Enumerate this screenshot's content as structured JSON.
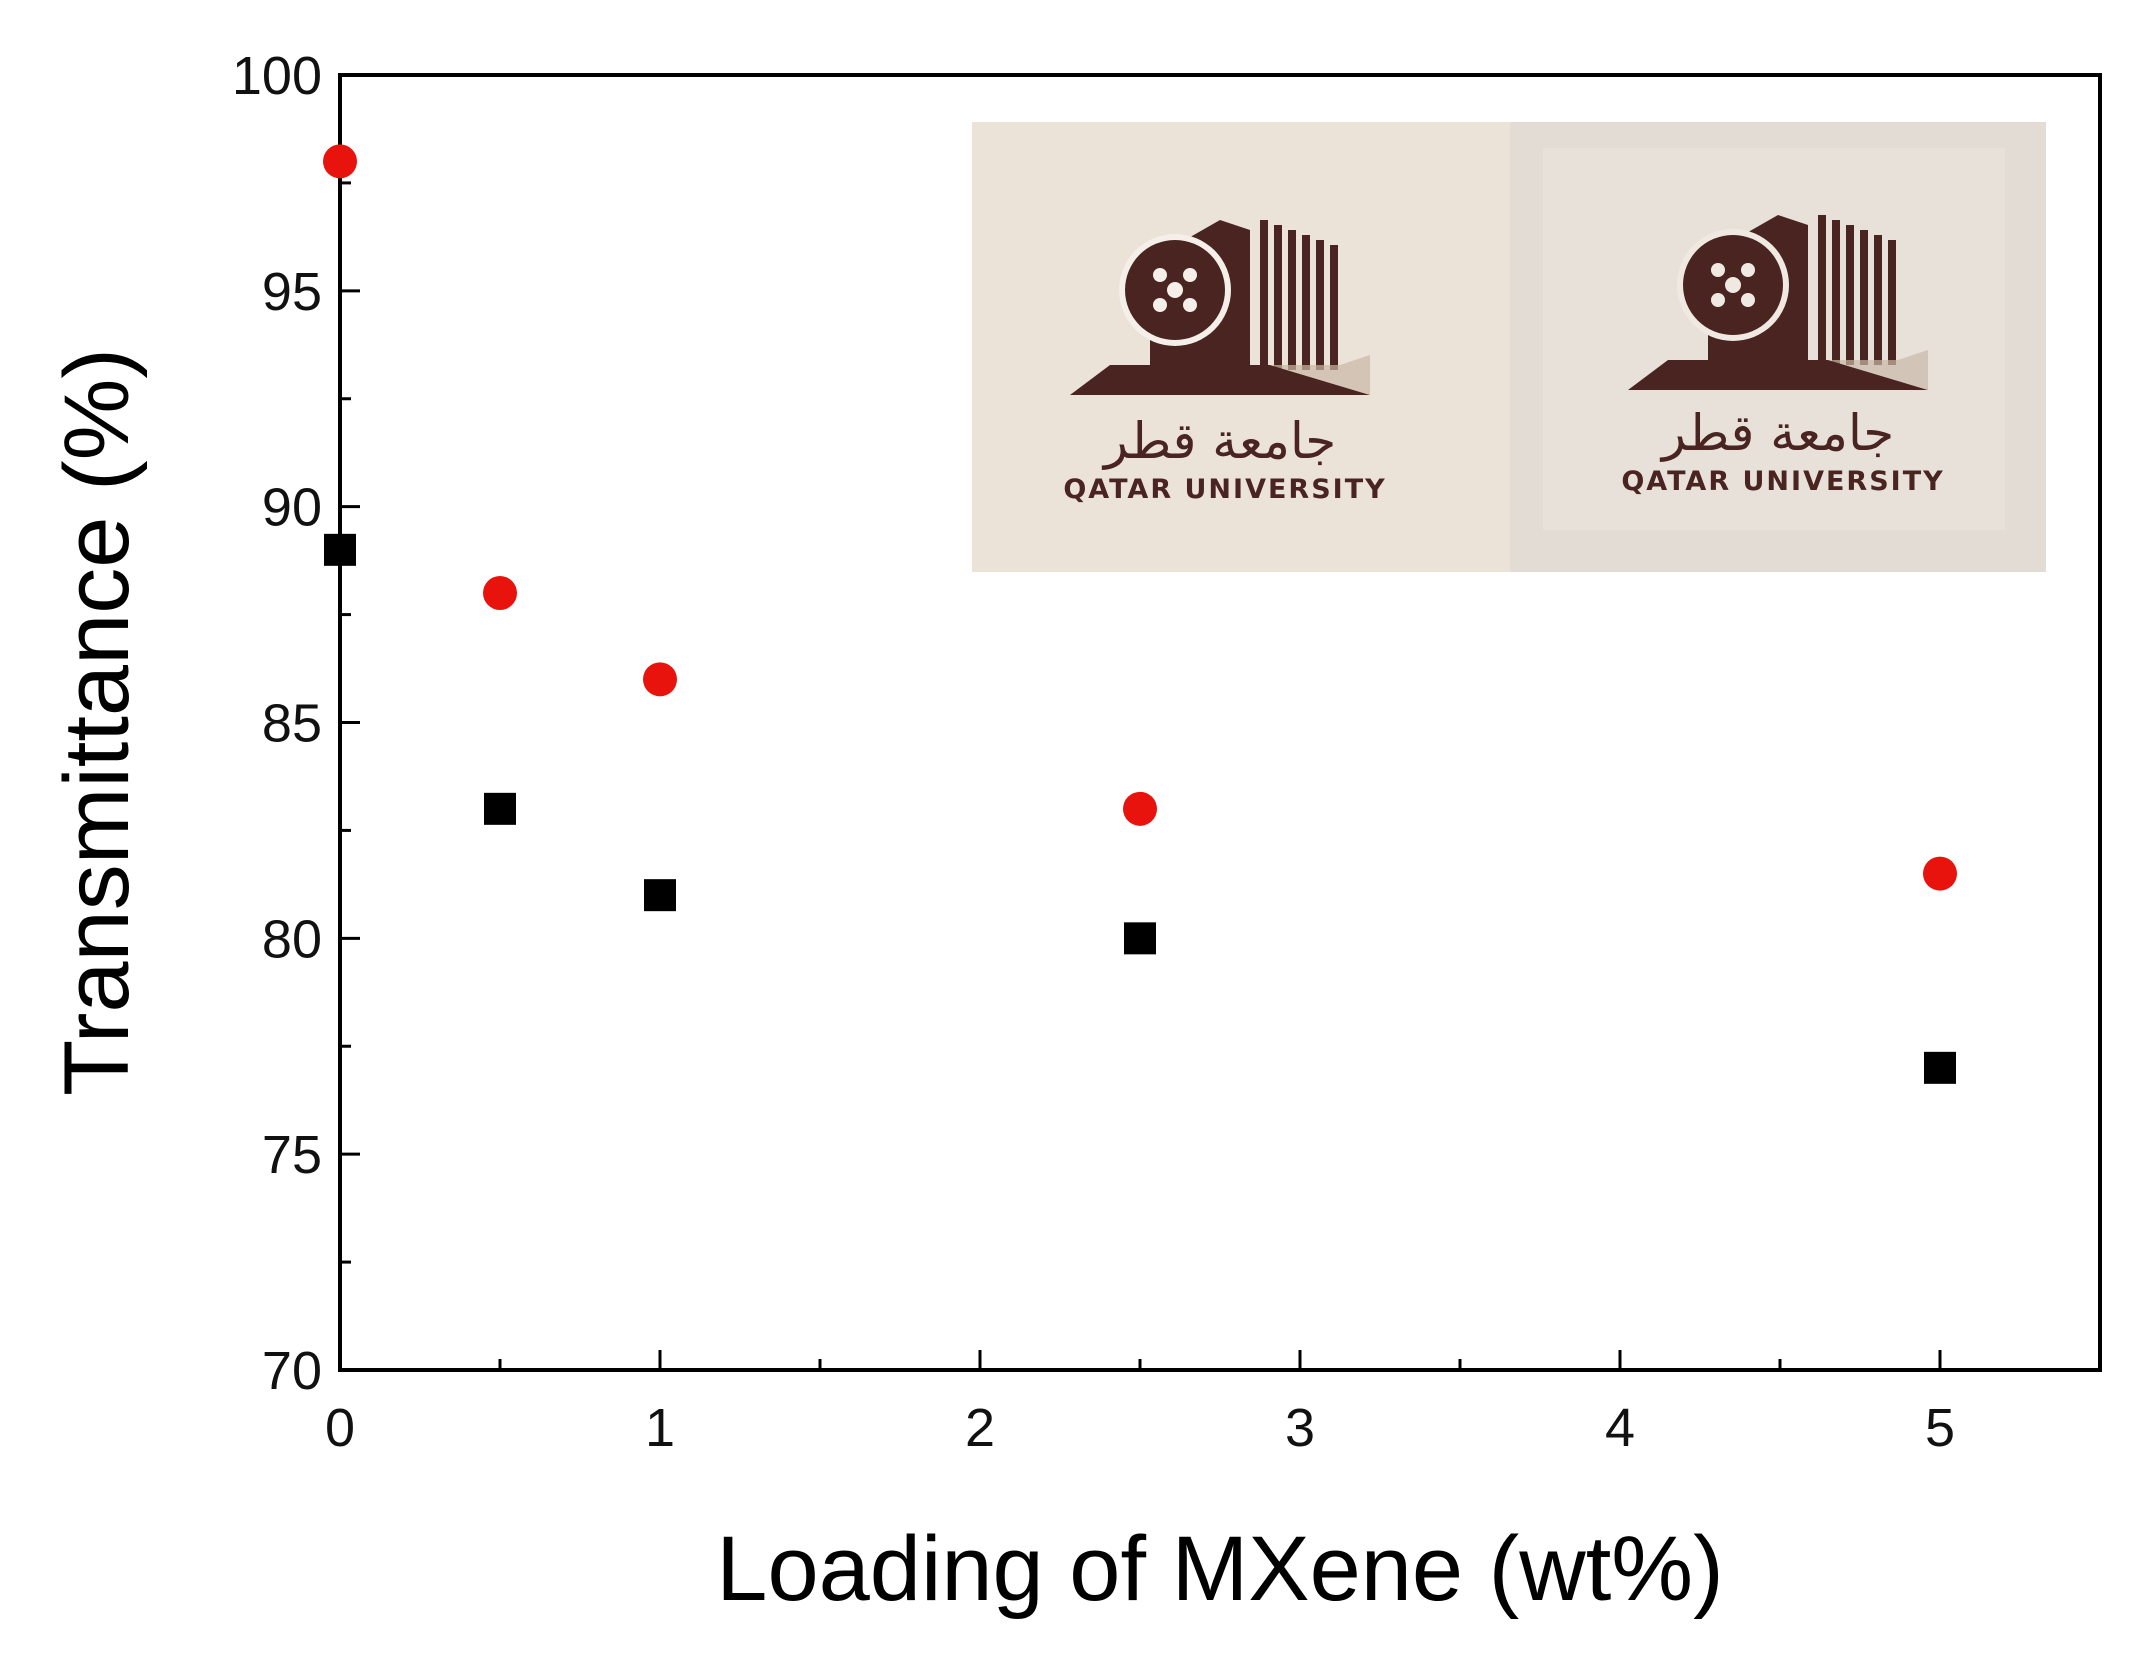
{
  "chart_data": {
    "type": "scatter",
    "xlabel": "Loading of MXene (wt%)",
    "ylabel": "Transmittance (%)",
    "xlim": [
      0,
      5.5
    ],
    "ylim": [
      70,
      100
    ],
    "x_ticks": [
      "0",
      "1",
      "2",
      "3",
      "4",
      "5"
    ],
    "y_ticks": [
      "70",
      "75",
      "80",
      "85",
      "90",
      "95",
      "100"
    ],
    "grid": false,
    "legend": "none",
    "series": [
      {
        "marker": "circle",
        "color": "#e8130d",
        "points": [
          [
            0,
            98
          ],
          [
            0.5,
            88
          ],
          [
            1,
            86
          ],
          [
            2.5,
            83
          ],
          [
            5,
            81.5
          ]
        ]
      },
      {
        "marker": "square",
        "color": "#000000",
        "points": [
          [
            0,
            89
          ],
          [
            0.5,
            83
          ],
          [
            1,
            81
          ],
          [
            2.5,
            80
          ],
          [
            5,
            77
          ]
        ]
      }
    ]
  },
  "inset": {
    "panels": [
      {
        "logo_text_arabic": "جامعة قطر",
        "logo_text_english": "QATAR UNIVERSITY",
        "background": "#ebe2d8"
      },
      {
        "logo_text_arabic": "جامعة قطر",
        "logo_text_english": "QATAR UNIVERSITY",
        "background": "#e3dcd4"
      }
    ],
    "logo_color": "#4a2420"
  }
}
